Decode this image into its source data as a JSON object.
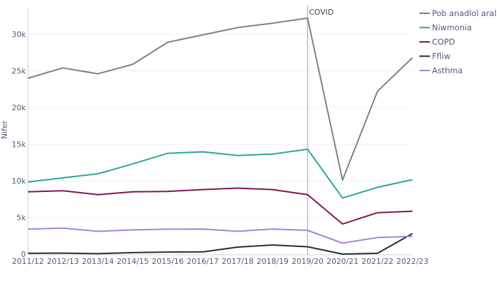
{
  "chart_data": {
    "type": "line",
    "title": "",
    "xlabel": "",
    "ylabel": "Nifer",
    "ylim": [
      0,
      33000
    ],
    "yticks": [
      0,
      5000,
      10000,
      15000,
      20000,
      25000,
      30000
    ],
    "ytick_labels": [
      "0",
      "5k",
      "10k",
      "15k",
      "20k",
      "25k",
      "30k"
    ],
    "grid": true,
    "legend_position": "top-right",
    "categories": [
      "2011/12",
      "2012/13",
      "2013/14",
      "2014/15",
      "2015/16",
      "2016/17",
      "2017/18",
      "2018/19",
      "2019/20",
      "2020/21",
      "2021/22",
      "2022/23"
    ],
    "annotation": {
      "category": "2019/20",
      "label": "COVID"
    },
    "series": [
      {
        "name": "Pob anadlol arall",
        "color": "#808080",
        "values": [
          24000,
          25400,
          24600,
          25900,
          28900,
          29900,
          30900,
          31500,
          32200,
          10100,
          22200,
          26800
        ]
      },
      {
        "name": "Niwmonia",
        "color": "#2ca598",
        "values": [
          9850,
          10400,
          10950,
          12300,
          13750,
          13950,
          13450,
          13650,
          14300,
          7650,
          9100,
          10150
        ]
      },
      {
        "name": "COPD",
        "color": "#7c1650",
        "values": [
          8500,
          8650,
          8100,
          8500,
          8550,
          8800,
          9000,
          8800,
          8100,
          4100,
          5650,
          5850
        ]
      },
      {
        "name": "Ffliw",
        "color": "#2b2b2b",
        "values": [
          100,
          130,
          60,
          200,
          280,
          300,
          950,
          1240,
          1000,
          0,
          100,
          2800
        ]
      },
      {
        "name": "Asthma",
        "color": "#a680dc",
        "values": [
          3400,
          3550,
          3100,
          3300,
          3400,
          3420,
          3100,
          3420,
          3240,
          1500,
          2260,
          2420
        ]
      }
    ]
  }
}
